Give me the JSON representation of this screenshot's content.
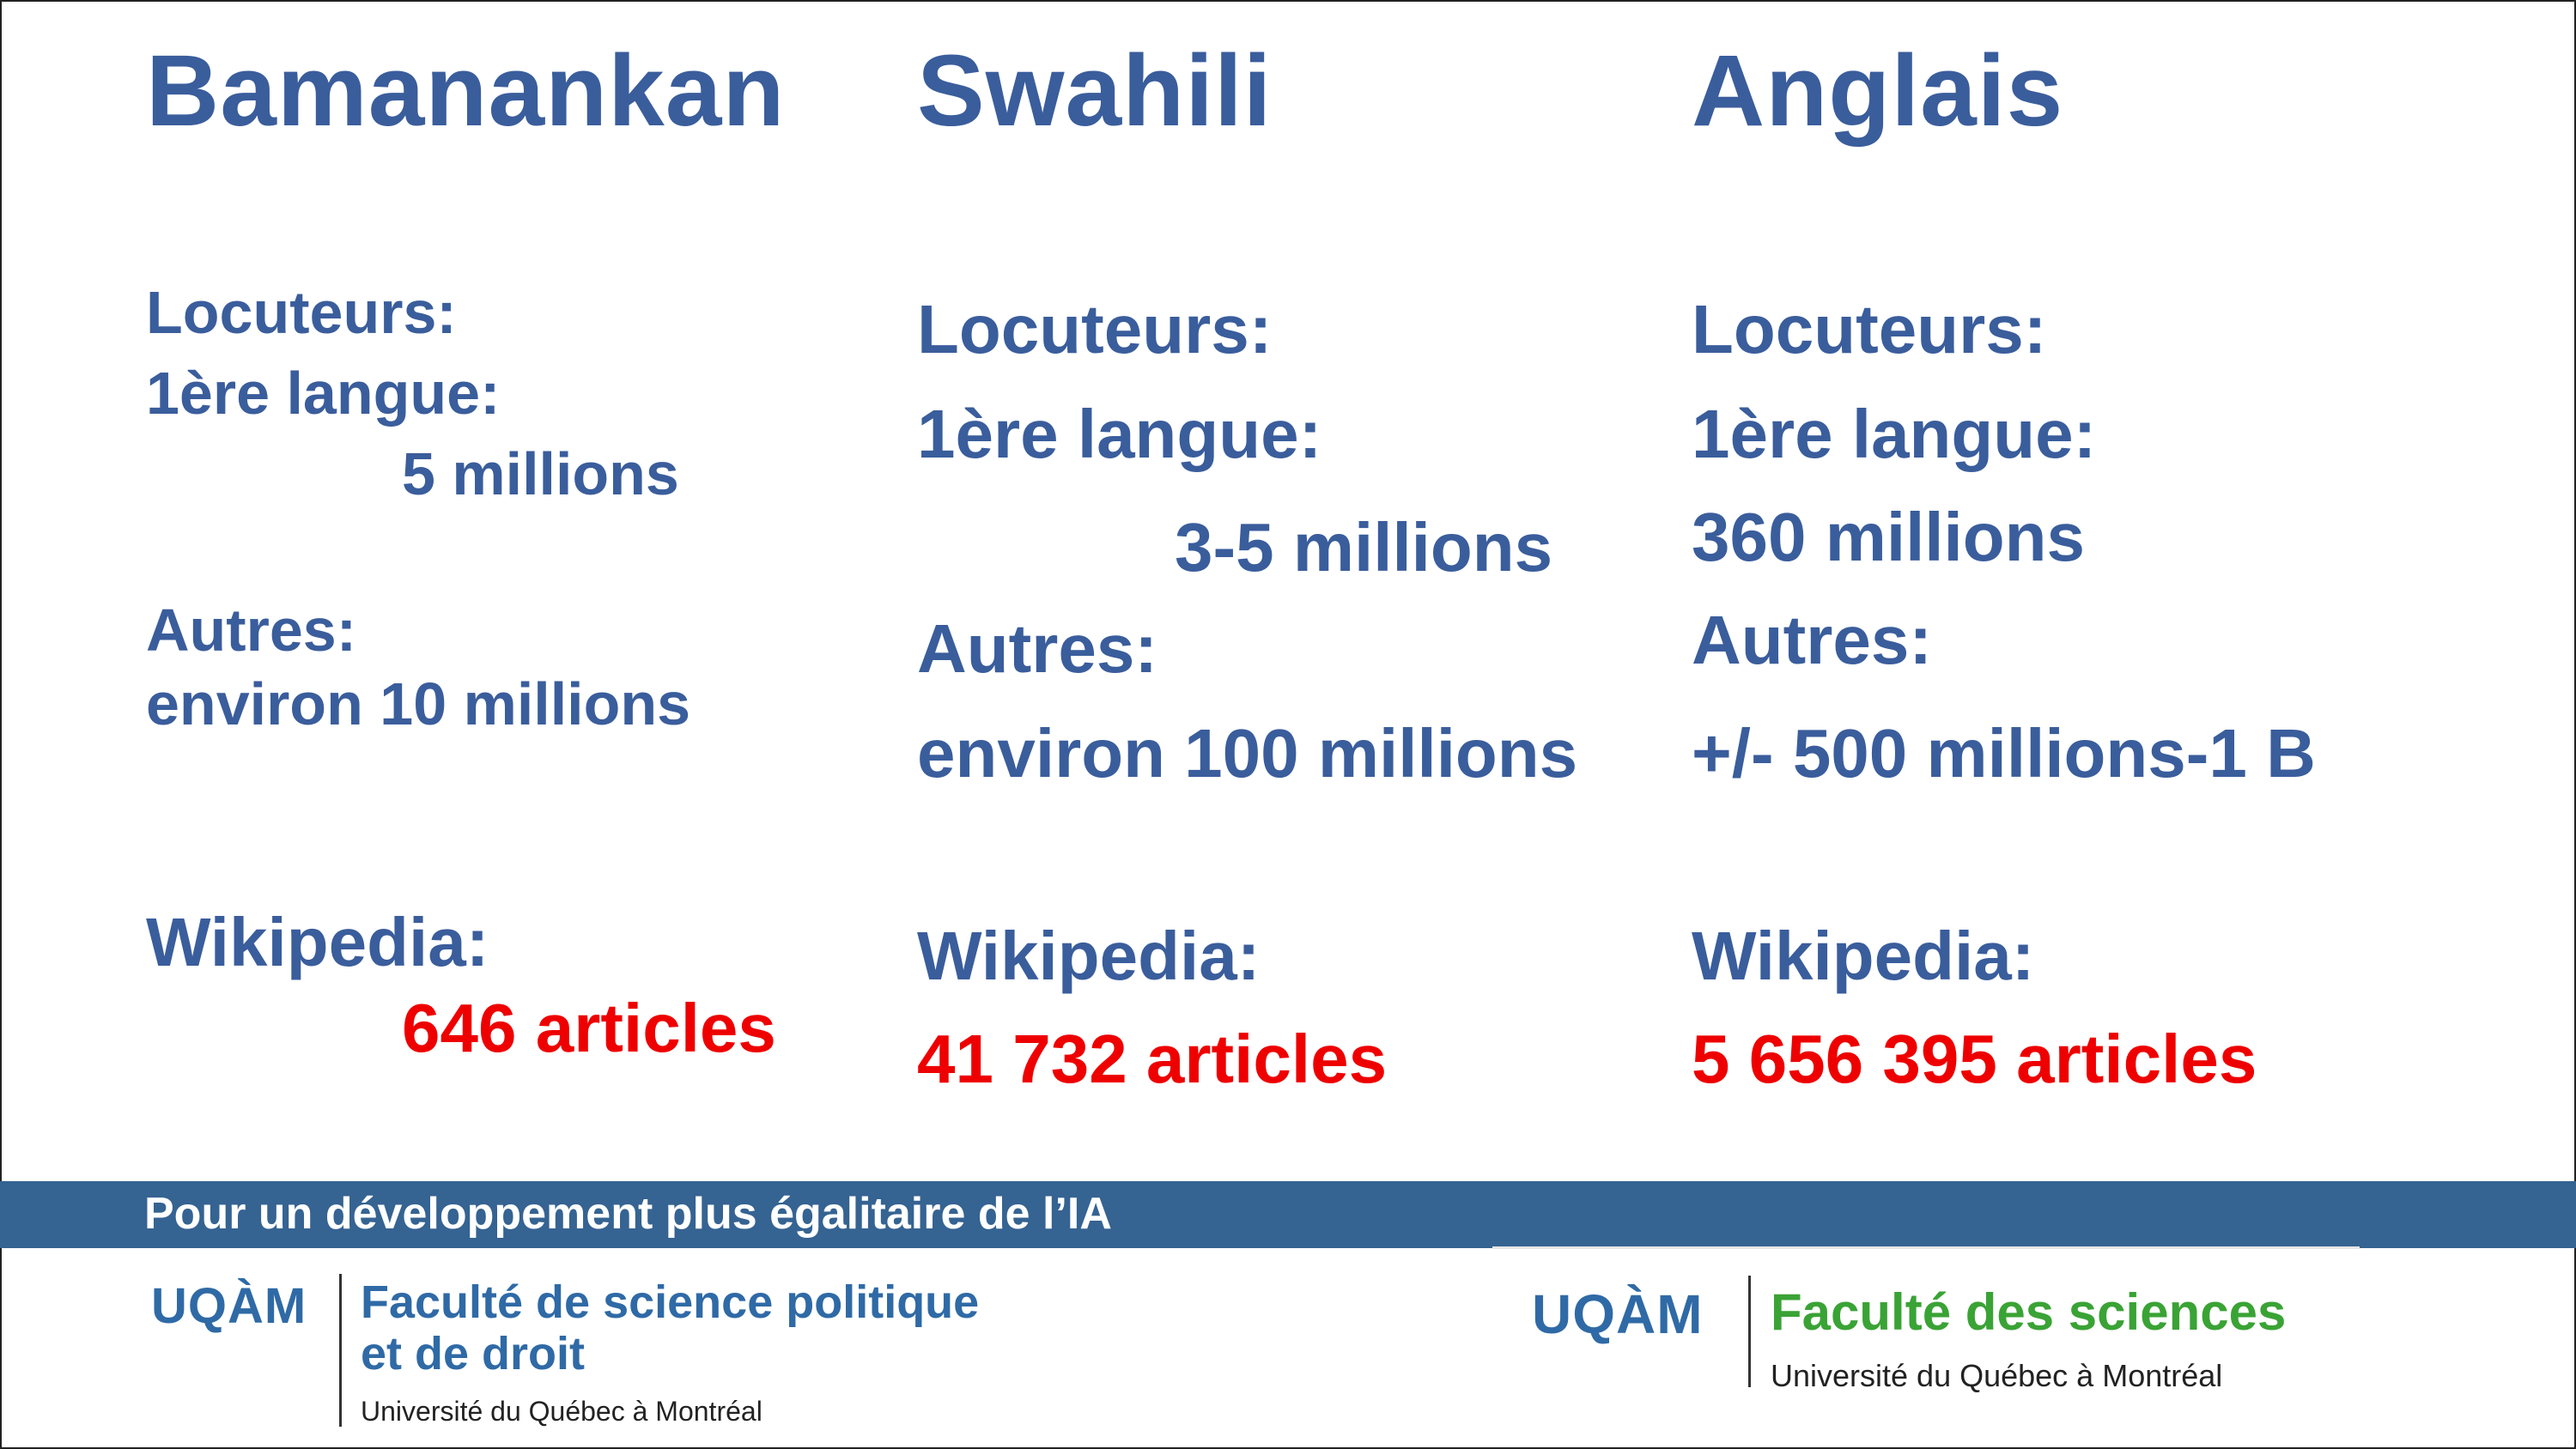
{
  "columns": [
    {
      "title": "Bamanankan",
      "speakers_label": "Locuteurs:",
      "first_lang_label": "1ère langue:",
      "first_lang_value": "5 millions",
      "others_label": "Autres:",
      "others_value": "environ 10 millions",
      "wiki_label": "Wikipedia:",
      "wiki_value": "646 articles"
    },
    {
      "title": "Swahili",
      "speakers_label": "Locuteurs:",
      "first_lang_label": "1ère langue:",
      "first_lang_value": "3-5 millions",
      "others_label": "Autres:",
      "others_value": "environ 100 millions",
      "wiki_label": "Wikipedia:",
      "wiki_value": "41 732 articles"
    },
    {
      "title": "Anglais",
      "speakers_label": "Locuteurs:",
      "first_lang_label": "1ère langue:",
      "first_lang_value": "360 millions",
      "others_label": "Autres:",
      "others_value": "+/- 500 millions-1 B",
      "wiki_label": "Wikipedia:",
      "wiki_value": "5 656 395 articles"
    }
  ],
  "footer": {
    "tagline": "Pour un développement plus égalitaire de l’IA",
    "logo_left": {
      "uqam": "UQÀM",
      "faculty_line1": "Faculté de science politique",
      "faculty_line2": "et de droit",
      "university": "Université du Québec à Montréal",
      "color": "#2f6aa6"
    },
    "logo_right": {
      "uqam": "UQÀM",
      "faculty_line1": "Faculté des sciences",
      "university": "Université du Québec à Montréal",
      "color": "#3aa335"
    }
  },
  "colors": {
    "heading": "#3a5d9c",
    "highlight": "#ee0000",
    "band": "#356392"
  }
}
